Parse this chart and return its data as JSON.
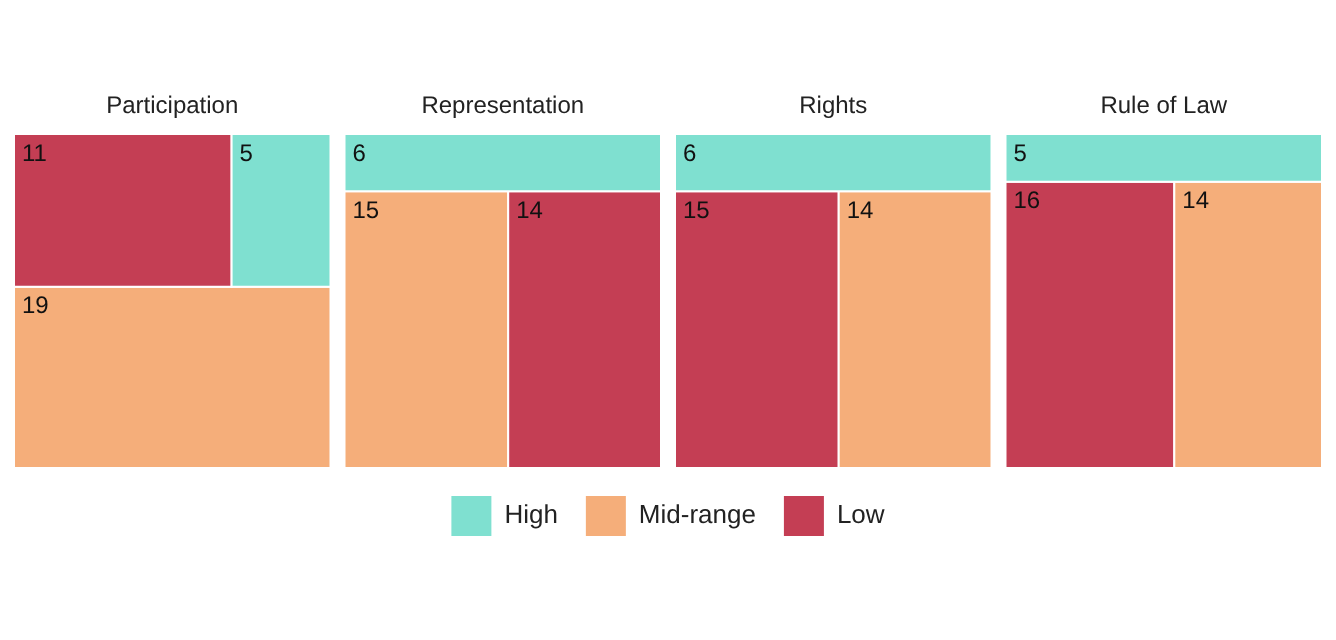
{
  "chart_data": {
    "type": "other",
    "categories": [
      "Participation",
      "Representation",
      "Rights",
      "Rule of Law"
    ],
    "data_labels": true,
    "legend": "bottom",
    "series": [
      {
        "name": "High",
        "color": "#7fe0d0",
        "values": [
          5,
          6,
          6,
          5
        ]
      },
      {
        "name": "Mid-range",
        "color": "#f5ae7a",
        "values": [
          19,
          15,
          14,
          14
        ]
      },
      {
        "name": "Low",
        "color": "#c43e54",
        "values": [
          11,
          14,
          15,
          16
        ]
      }
    ]
  }
}
